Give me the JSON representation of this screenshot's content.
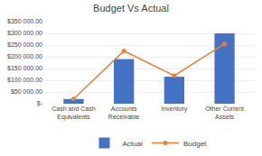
{
  "chart_data": {
    "type": "bar",
    "title": "Budget Vs Actual",
    "categories": [
      "Cash and Cash\nEquivalents",
      "Accounts\nReceivable",
      "Inventory",
      "Other Current\nAssets"
    ],
    "series": [
      {
        "name": "Actual",
        "type": "bar",
        "color": "#4472C4",
        "values": [
          20000,
          190000,
          115000,
          300000
        ]
      },
      {
        "name": "Budget",
        "type": "line",
        "color": "#ED7D31",
        "marker": "circle",
        "values": [
          20000,
          225000,
          120000,
          255000
        ]
      }
    ],
    "ylim": [
      0,
      350000
    ],
    "yticks": [
      {
        "value": 0,
        "label": "$-"
      },
      {
        "value": 50000,
        "label": "$50 000.00"
      },
      {
        "value": 100000,
        "label": "$100 000.00"
      },
      {
        "value": 150000,
        "label": "$150 000.00"
      },
      {
        "value": 200000,
        "label": "$200 000.00"
      },
      {
        "value": 250000,
        "label": "$250 000.00"
      },
      {
        "value": 300000,
        "label": "$300 000.00"
      },
      {
        "value": 350000,
        "label": "$350 000.00"
      }
    ],
    "grid": true,
    "legend": "bottom"
  }
}
